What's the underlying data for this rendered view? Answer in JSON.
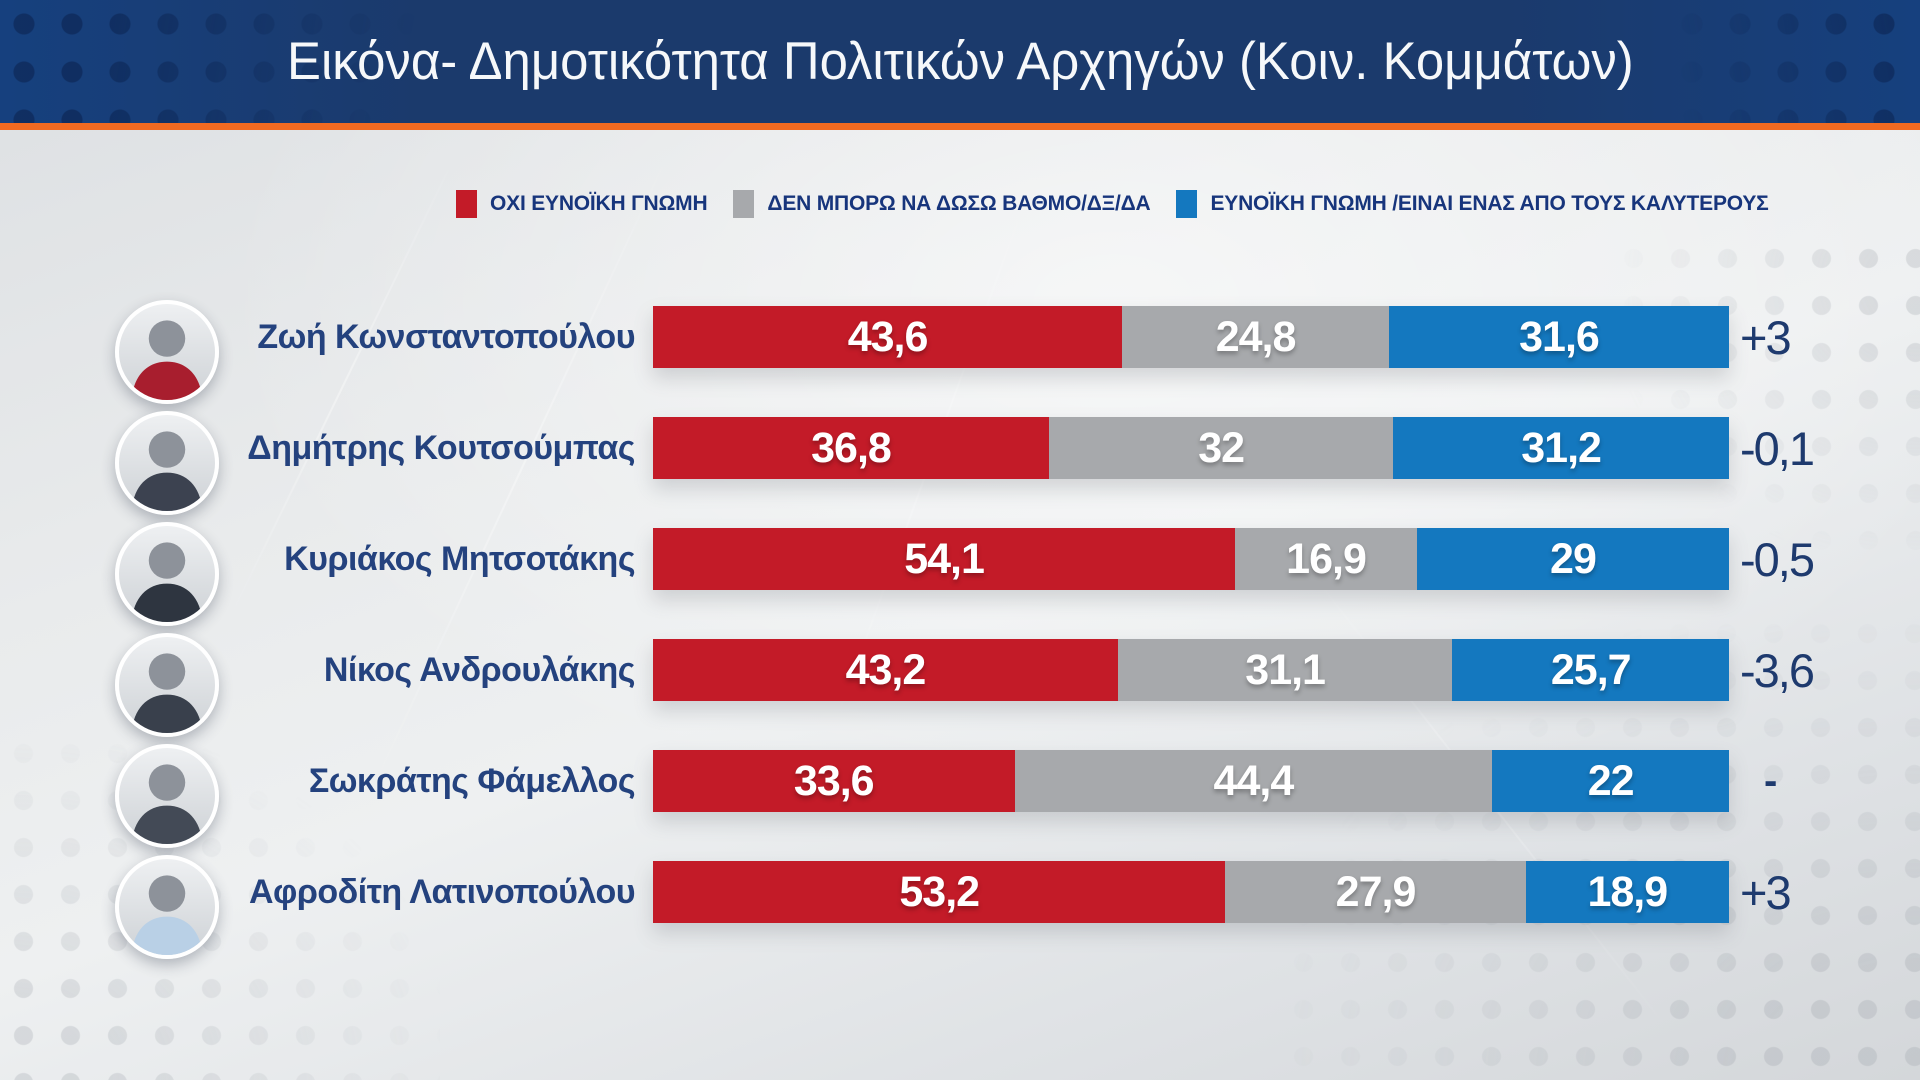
{
  "header": {
    "title": "Εικόνα- Δημοτικότητα Πολιτικών Αρχηγών (Κοιν. Κομμάτων)",
    "bg_color": "#1b3a6c",
    "bg_edge_color": "#16407e",
    "accent_color": "#f16a21"
  },
  "legend": {
    "items": [
      {
        "key": "unfavorable",
        "label": "ΟΧΙ ΕΥΝΟΪΚΗ ΓΝΩΜΗ",
        "color": "#c31b28"
      },
      {
        "key": "neutral",
        "label": "ΔΕΝ ΜΠΟΡΩ ΝΑ ΔΩΣΩ ΒΑΘΜΟ/ΔΞ/ΔΑ",
        "color": "#a7a9ac"
      },
      {
        "key": "favorable",
        "label": "ΕΥΝΟΪΚΗ ΓΝΩΜΗ /ΕΙΝΑΙ ΕΝΑΣ ΑΠΟ ΤΟΥΣ ΚΑΛΥΤΕΡΟΥΣ",
        "color": "#1478bf"
      }
    ]
  },
  "chart_data": {
    "type": "bar",
    "orientation": "horizontal_stacked",
    "title": "Εικόνα- Δημοτικότητα Πολιτικών Αρχηγών (Κοιν. Κομμάτων)",
    "xlim": [
      0,
      100
    ],
    "decimal_separator": ",",
    "legend_position": "top",
    "categories": [
      "Ζωή Κωνσταντοπούλου",
      "Δημήτρης Κουτσούμπας",
      "Κυριάκος Μητσοτάκης",
      "Νίκος Ανδρουλάκης",
      "Σωκράτης Φάμελλος",
      "Αφροδίτη Λατινοπούλου"
    ],
    "series": [
      {
        "name": "ΟΧΙ ΕΥΝΟΪΚΗ ΓΝΩΜΗ",
        "color": "#c31b28",
        "values": [
          43.6,
          36.8,
          54.1,
          43.2,
          33.6,
          53.2
        ]
      },
      {
        "name": "ΔΕΝ ΜΠΟΡΩ ΝΑ ΔΩΣΩ ΒΑΘΜΟ/ΔΞ/ΔΑ",
        "color": "#a7a9ac",
        "values": [
          24.8,
          32,
          16.9,
          31.1,
          44.4,
          27.9
        ]
      },
      {
        "name": "ΕΥΝΟΪΚΗ ΓΝΩΜΗ /ΕΙΝΑΙ ΕΝΑΣ ΑΠΟ ΤΟΥΣ ΚΑΛΥΤΕΡΟΥΣ",
        "color": "#1478bf",
        "values": [
          31.6,
          31.2,
          29,
          25.7,
          22,
          18.9
        ]
      }
    ],
    "deltas": [
      "+3",
      "-0,1",
      "-0,5",
      "-3,6",
      "-",
      "+3"
    ]
  },
  "rows": [
    {
      "name": "Ζωή Κωνσταντοπούλου",
      "unfavorable": 43.6,
      "neutral": 24.8,
      "favorable": 31.6,
      "unfavorable_label": "43,6",
      "neutral_label": "24,8",
      "favorable_label": "31,6",
      "delta": "+3",
      "avatar_color": "#a81e2e"
    },
    {
      "name": "Δημήτρης Κουτσούμπας",
      "unfavorable": 36.8,
      "neutral": 32,
      "favorable": 31.2,
      "unfavorable_label": "36,8",
      "neutral_label": "32",
      "favorable_label": "31,2",
      "delta": "-0,1",
      "avatar_color": "#3c4250"
    },
    {
      "name": "Κυριάκος Μητσοτάκης",
      "unfavorable": 54.1,
      "neutral": 16.9,
      "favorable": 29,
      "unfavorable_label": "54,1",
      "neutral_label": "16,9",
      "favorable_label": "29",
      "delta": "-0,5",
      "avatar_color": "#2e3540"
    },
    {
      "name": "Νίκος Ανδρουλάκης",
      "unfavorable": 43.2,
      "neutral": 31.1,
      "favorable": 25.7,
      "unfavorable_label": "43,2",
      "neutral_label": "31,1",
      "favorable_label": "25,7",
      "delta": "-3,6",
      "avatar_color": "#39404c"
    },
    {
      "name": "Σωκράτης Φάμελλος",
      "unfavorable": 33.6,
      "neutral": 44.4,
      "favorable": 22,
      "unfavorable_label": "33,6",
      "neutral_label": "44,4",
      "favorable_label": "22",
      "delta": "-",
      "avatar_color": "#434a56"
    },
    {
      "name": "Αφροδίτη Λατινοπούλου",
      "unfavorable": 53.2,
      "neutral": 27.9,
      "favorable": 18.9,
      "unfavorable_label": "53,2",
      "neutral_label": "27,9",
      "favorable_label": "18,9",
      "delta": "+3",
      "avatar_color": "#b9d0e6"
    }
  ]
}
